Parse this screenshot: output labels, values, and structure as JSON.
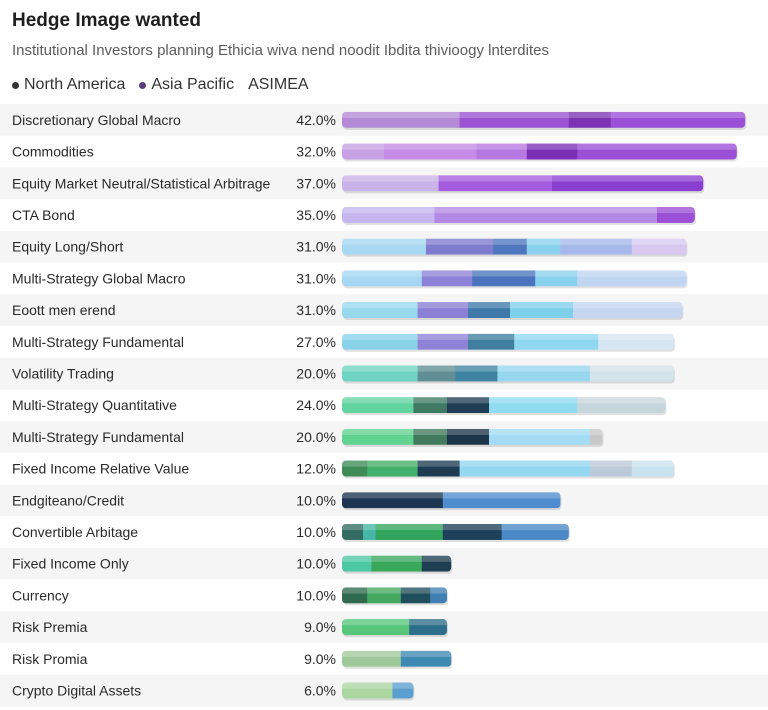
{
  "chart_data": {
    "type": "bar",
    "orientation": "horizontal",
    "stacked": true,
    "title": "Hedge Image wanted",
    "subtitle": "Institutional Investors planning Ethicia wiva nend noodit Ibdita thivioogy lnterdites",
    "legend": [
      {
        "label": "North America",
        "color": "#333333"
      },
      {
        "label": "Asia Pacific",
        "color": "#5a3d7a"
      },
      {
        "label": "ASIMEA",
        "color": "#333333"
      }
    ],
    "categories": [
      "Discretionary Global Macro",
      "Commodities",
      "Equity Market Neutral/Statistical Arbitrage",
      "CTA Bond",
      "Equity Long/Short",
      "Multi-Strategy Global Macro",
      "Eoott men erend",
      "Multi-Strategy Fundamental",
      "Volatility Trading",
      "Multi-Strategy Quantitative",
      "Multi-Strategy Fundamental",
      "Fixed Income Relative Value",
      "Endgiteano/Credit",
      "Convertible Arbitage",
      "Fixed Income Only",
      "Currency",
      "Risk Premia",
      "Risk Promia",
      "Crypto Digital Assets"
    ],
    "value_labels": [
      "42.0%",
      "32.0%",
      "37.0%",
      "35.0%",
      "31.0%",
      "31.0%",
      "31.0%",
      "27.0%",
      "20.0%",
      "24.0%",
      "20.0%",
      "12.0%",
      "10.0%",
      "10.0%",
      "10.0%",
      "10.0%",
      "9.0%",
      "9.0%",
      "6.0%"
    ],
    "xlim": [
      0,
      100
    ],
    "bar_totals": [
      96,
      94,
      86,
      84,
      82,
      82,
      81,
      79,
      79,
      77,
      62,
      79,
      52,
      54,
      26,
      25,
      25,
      26,
      17
    ],
    "bar_segments": [
      [
        {
          "value": 28,
          "color": "#b48ad6"
        },
        {
          "value": 26,
          "color": "#9b52d3"
        },
        {
          "value": 10,
          "color": "#7d34b4"
        },
        {
          "value": 32,
          "color": "#9a4fd6"
        }
      ],
      [
        {
          "value": 10,
          "color": "#c7a1e5"
        },
        {
          "value": 22,
          "color": "#c58be6"
        },
        {
          "value": 12,
          "color": "#b677e1"
        },
        {
          "value": 12,
          "color": "#7a2fb5"
        },
        {
          "value": 38,
          "color": "#9a4fd6"
        }
      ],
      [
        {
          "value": 23,
          "color": "#c9b3ea"
        },
        {
          "value": 27,
          "color": "#a45be0"
        },
        {
          "value": 36,
          "color": "#8a3ed0"
        }
      ],
      [
        {
          "value": 22,
          "color": "#c5b6ee"
        },
        {
          "value": 53,
          "color": "#b489e6"
        },
        {
          "value": 9,
          "color": "#9a4fd6"
        }
      ],
      [
        {
          "value": 20,
          "color": "#a6d7f3"
        },
        {
          "value": 16,
          "color": "#7f7ccf"
        },
        {
          "value": 8,
          "color": "#4f77c0"
        },
        {
          "value": 8,
          "color": "#8ad1ee"
        },
        {
          "value": 17,
          "color": "#a7b8ea"
        },
        {
          "value": 13,
          "color": "#d8c8f1"
        }
      ],
      [
        {
          "value": 19,
          "color": "#a6d7f3"
        },
        {
          "value": 12,
          "color": "#8d82d8"
        },
        {
          "value": 15,
          "color": "#4a74bd"
        },
        {
          "value": 10,
          "color": "#8ad1ee"
        },
        {
          "value": 26,
          "color": "#bfd5f2"
        }
      ],
      [
        {
          "value": 18,
          "color": "#96d8ee"
        },
        {
          "value": 12,
          "color": "#8b7fd6"
        },
        {
          "value": 10,
          "color": "#3f79a9"
        },
        {
          "value": 15,
          "color": "#7fd0ea"
        },
        {
          "value": 26,
          "color": "#c4d6f2"
        }
      ],
      [
        {
          "value": 18,
          "color": "#8ad2e9"
        },
        {
          "value": 12,
          "color": "#8d82d6"
        },
        {
          "value": 11,
          "color": "#3f7e9f"
        },
        {
          "value": 20,
          "color": "#8fd7f0"
        },
        {
          "value": 18,
          "color": "#d7e5f3"
        }
      ],
      [
        {
          "value": 18,
          "color": "#6fd4c2"
        },
        {
          "value": 9,
          "color": "#5f8f94"
        },
        {
          "value": 10,
          "color": "#3e84a2"
        },
        {
          "value": 22,
          "color": "#96d6ef"
        },
        {
          "value": 20,
          "color": "#d4e2ea"
        }
      ],
      [
        {
          "value": 17,
          "color": "#62d4a0"
        },
        {
          "value": 8,
          "color": "#3f7b64"
        },
        {
          "value": 10,
          "color": "#1f3d55"
        },
        {
          "value": 21,
          "color": "#8edbf2"
        },
        {
          "value": 21,
          "color": "#c7d6dc"
        }
      ],
      [
        {
          "value": 17,
          "color": "#5fd38f"
        },
        {
          "value": 8,
          "color": "#417a5c"
        },
        {
          "value": 10,
          "color": "#1d3548"
        },
        {
          "value": 24,
          "color": "#a3dcf4"
        },
        {
          "value": 3,
          "color": "#c8c8c8"
        }
      ],
      [
        {
          "value": 6,
          "color": "#3e8b58"
        },
        {
          "value": 12,
          "color": "#43b06b"
        },
        {
          "value": 10,
          "color": "#1d3b52"
        },
        {
          "value": 31,
          "color": "#94d7f1"
        },
        {
          "value": 10,
          "color": "#bcc9d9"
        },
        {
          "value": 10,
          "color": "#c8e2ef"
        }
      ],
      [
        {
          "value": 24,
          "color": "#1c3550"
        },
        {
          "value": 28,
          "color": "#4f8ccf"
        }
      ],
      [
        {
          "value": 5,
          "color": "#336c63"
        },
        {
          "value": 3,
          "color": "#46b6a6"
        },
        {
          "value": 16,
          "color": "#32a55c"
        },
        {
          "value": 14,
          "color": "#1f4059"
        },
        {
          "value": 16,
          "color": "#4b89c6"
        }
      ],
      [
        {
          "value": 7,
          "color": "#4cc8a2"
        },
        {
          "value": 12,
          "color": "#39a85b"
        },
        {
          "value": 7,
          "color": "#1e3e52"
        }
      ],
      [
        {
          "value": 6,
          "color": "#2f6a4e"
        },
        {
          "value": 8,
          "color": "#45a860"
        },
        {
          "value": 7,
          "color": "#1f4f5c"
        },
        {
          "value": 4,
          "color": "#3f7fb3"
        }
      ],
      [
        {
          "value": 16,
          "color": "#56c77a"
        },
        {
          "value": 9,
          "color": "#2d6e8a"
        }
      ],
      [
        {
          "value": 14,
          "color": "#9fc99a"
        },
        {
          "value": 12,
          "color": "#3f8ab2"
        }
      ],
      [
        {
          "value": 12,
          "color": "#a9d6a1"
        },
        {
          "value": 5,
          "color": "#5a9fd0"
        }
      ]
    ]
  }
}
